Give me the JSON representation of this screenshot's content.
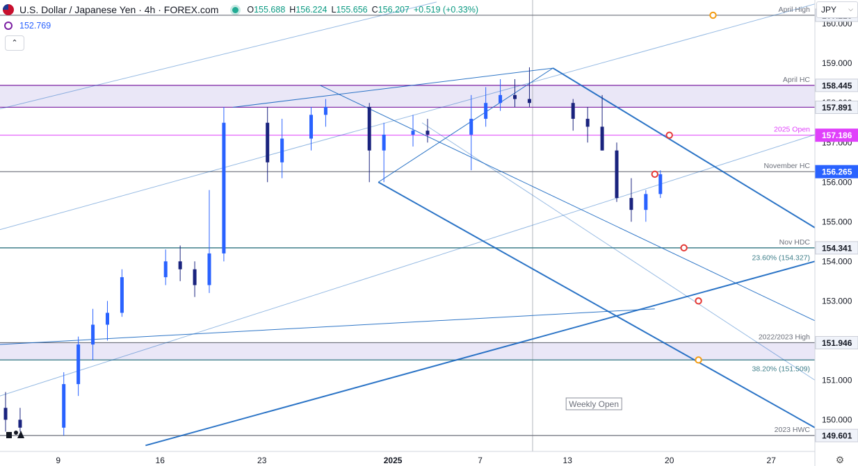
{
  "header": {
    "title": "U.S. Dollar / Japanese Yen · 4h · FOREX.com",
    "open_label": "O",
    "open": "155.688",
    "high_label": "H",
    "high": "156.224",
    "low_label": "L",
    "low": "155.656",
    "close_label": "C",
    "close": "156.207",
    "change": "+0.519 (+0.33%)",
    "indicator_value": "152.769",
    "currency": "JPY"
  },
  "colors": {
    "up": "#2962ff",
    "down": "#1a237e",
    "channel": "#1565c0",
    "level_line": "#6b6f7a",
    "zone_fill": "#e8e4f6",
    "zone_border": "#7b1fa2",
    "magenta": "#e040fb",
    "marker_red": "#e53935",
    "marker_orange": "#f39c12",
    "teal_line": "#3f7f8a"
  },
  "chart_data": {
    "type": "candlestick",
    "title": "U.S. Dollar / Japanese Yen · 4h · FOREX.com",
    "y_axis": {
      "side": "right",
      "ylim": [
        149.2,
        160.6
      ],
      "ticks": [
        "150.000",
        "151.000",
        "152.000",
        "153.000",
        "154.000",
        "155.000",
        "156.000",
        "157.000",
        "158.000",
        "159.000",
        "160.000"
      ]
    },
    "x_axis": {
      "tick_labels": [
        "9",
        "16",
        "23",
        "2025",
        "7",
        "13",
        "20",
        "27"
      ],
      "date_range": [
        "2024-12-05",
        "2025-01-30"
      ],
      "tick_dates": [
        "2024-12-09",
        "2024-12-16",
        "2024-12-23",
        "2025-01-01",
        "2025-01-07",
        "2025-01-13",
        "2025-01-20",
        "2025-01-27"
      ]
    },
    "horizontal_levels": [
      {
        "price": 160.215,
        "label": "April High",
        "badge": "160.215",
        "badge_style": "light"
      },
      {
        "price": 158.445,
        "label": "April HC",
        "badge": "158.445",
        "badge_style": "light"
      },
      {
        "price": 157.891,
        "label": "",
        "badge": "157.891",
        "badge_style": "light"
      },
      {
        "price": 157.186,
        "label": "2025 Open",
        "badge": "157.186",
        "badge_style": "magenta"
      },
      {
        "price": 156.265,
        "label": "November HC",
        "badge": "156.265",
        "badge_style": "blue"
      },
      {
        "price": 154.341,
        "label": "Nov HDC",
        "badge": "154.341",
        "badge_style": "light"
      },
      {
        "price": 151.946,
        "label": "2022/2023 High",
        "badge": "151.946",
        "badge_style": "light"
      },
      {
        "price": 151.509,
        "label": "",
        "badge": "",
        "badge_style": "none"
      },
      {
        "price": 149.601,
        "label": "2023 HWC",
        "badge": "149.601",
        "badge_style": "light"
      }
    ],
    "fib_labels": [
      {
        "price": 154.327,
        "label": "23.60% (154.327)"
      },
      {
        "price": 151.509,
        "label": "38.20% (151.509)"
      }
    ],
    "zones": [
      {
        "from": 157.891,
        "to": 158.445
      },
      {
        "from": 151.509,
        "to": 151.946
      }
    ],
    "annotations": [
      {
        "text": "Weekly Open",
        "date": "2025-01-13"
      }
    ],
    "trendlines": [
      {
        "from": [
          "2024-12-21",
          157.891
        ],
        "to": [
          "2025-01-12",
          158.88
        ]
      },
      {
        "from": [
          "2024-12-31",
          156.0
        ],
        "to": [
          "2025-01-12",
          158.88
        ]
      },
      {
        "from": [
          "2025-01-12",
          158.88
        ],
        "to": [
          "2025-01-30",
          154.85
        ]
      },
      {
        "from": [
          "2024-12-31",
          156.0
        ],
        "to": [
          "2025-01-30",
          149.8
        ]
      },
      {
        "from": [
          "2024-12-27",
          158.445
        ],
        "to": [
          "2025-01-30",
          152.5
        ]
      },
      {
        "from": [
          "2024-12-05",
          154.8
        ],
        "to": [
          "2025-01-30",
          160.5
        ]
      },
      {
        "from": [
          "2024-12-05",
          157.85
        ],
        "to": [
          "2025-01-04",
          160.55
        ]
      },
      {
        "from": [
          "2024-12-15",
          149.35
        ],
        "to": [
          "2025-01-30",
          154.0
        ]
      },
      {
        "from": [
          "2024-12-05",
          151.9
        ],
        "to": [
          "2025-01-19",
          152.8
        ]
      },
      {
        "from": [
          "2024-12-05",
          150.6
        ],
        "to": [
          "2025-01-30",
          157.2
        ]
      },
      {
        "from": [
          "2025-01-03",
          157.5
        ],
        "to": [
          "2025-01-30",
          151.0
        ]
      }
    ],
    "markers": [
      {
        "date": "2025-01-23",
        "price": 160.215,
        "color": "orange"
      },
      {
        "date": "2025-01-20",
        "price": 157.186,
        "color": "red"
      },
      {
        "date": "2025-01-19",
        "price": 156.2,
        "color": "red"
      },
      {
        "date": "2025-01-21",
        "price": 154.341,
        "color": "red"
      },
      {
        "date": "2025-01-22",
        "price": 153.0,
        "color": "red"
      },
      {
        "date": "2025-01-22",
        "price": 151.509,
        "color": "orange"
      }
    ],
    "series": [
      {
        "name": "",
        "x": [
          "2024-12-05",
          "2024-12-06",
          "2024-12-09",
          "2024-12-10",
          "2024-12-11",
          "2024-12-12",
          "2024-12-13",
          "2024-12-16",
          "2024-12-17",
          "2024-12-18",
          "2024-12-19",
          "2024-12-20",
          "2024-12-23",
          "2024-12-24",
          "2024-12-26",
          "2024-12-27",
          "2024-12-30",
          "2024-12-31",
          "2025-01-02",
          "2025-01-03",
          "2025-01-06",
          "2025-01-07",
          "2025-01-08",
          "2025-01-09",
          "2025-01-10",
          "2025-01-13",
          "2025-01-14",
          "2025-01-15",
          "2025-01-16",
          "2025-01-17",
          "2025-01-18",
          "2025-01-19"
        ],
        "open": [
          150.3,
          150.0,
          149.8,
          150.9,
          151.9,
          152.4,
          152.7,
          153.6,
          154.0,
          153.8,
          153.4,
          154.2,
          157.5,
          156.5,
          157.1,
          157.7,
          157.9,
          156.8,
          157.2,
          157.3,
          157.2,
          157.6,
          158.0,
          158.2,
          158.1,
          158.0,
          157.6,
          157.4,
          156.8,
          155.6,
          155.3,
          155.7
        ],
        "high": [
          150.7,
          150.3,
          151.2,
          152.1,
          152.8,
          153.0,
          153.8,
          154.3,
          154.4,
          154.0,
          155.8,
          157.9,
          157.9,
          157.6,
          157.9,
          158.1,
          158.0,
          157.5,
          157.7,
          157.6,
          158.2,
          158.4,
          158.6,
          158.6,
          158.9,
          158.1,
          157.9,
          158.2,
          157.0,
          156.1,
          155.8,
          156.3
        ],
        "low": [
          149.7,
          149.7,
          149.6,
          150.6,
          151.5,
          152.0,
          152.6,
          153.4,
          153.5,
          153.1,
          153.2,
          154.0,
          156.0,
          156.1,
          156.8,
          157.4,
          156.0,
          156.0,
          156.9,
          157.0,
          156.3,
          157.4,
          157.8,
          157.9,
          157.9,
          157.3,
          157.0,
          156.8,
          155.5,
          155.0,
          155.0,
          155.6
        ],
        "close": [
          150.0,
          149.8,
          150.9,
          151.9,
          152.4,
          152.7,
          153.6,
          154.0,
          153.8,
          153.4,
          154.2,
          157.5,
          156.5,
          157.1,
          157.7,
          157.9,
          156.8,
          157.2,
          157.3,
          157.2,
          157.6,
          158.0,
          158.2,
          158.1,
          158.0,
          157.6,
          157.4,
          156.8,
          155.6,
          155.3,
          155.7,
          156.2
        ]
      }
    ]
  }
}
